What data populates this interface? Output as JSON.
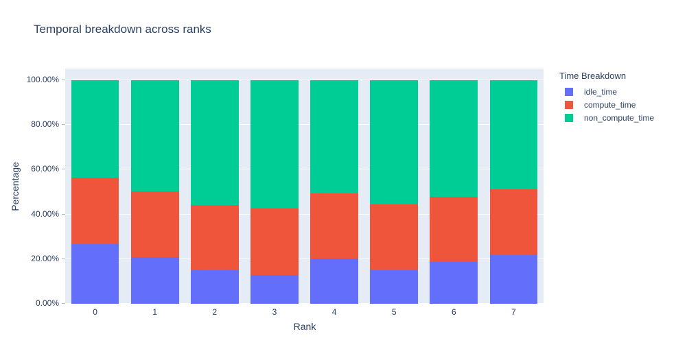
{
  "title": "Temporal breakdown across ranks",
  "colors": {
    "background": "#ffffff",
    "plot_background": "#e5ecf6",
    "grid": "#ffffff",
    "text": "#2a3f5f",
    "idle_time": "#636efa",
    "compute_time": "#ef553b",
    "non_compute_time": "#00cc96"
  },
  "chart_data": {
    "type": "bar",
    "stacked": true,
    "orientation": "vertical",
    "title": "Temporal breakdown across ranks",
    "xlabel": "Rank",
    "ylabel": "Percentage",
    "categories": [
      "0",
      "1",
      "2",
      "3",
      "4",
      "5",
      "6",
      "7"
    ],
    "series": [
      {
        "name": "idle_time",
        "color": "#636efa",
        "values": [
          26.8,
          20.8,
          15.0,
          13.0,
          20.3,
          15.1,
          18.6,
          21.7
        ]
      },
      {
        "name": "compute_time",
        "color": "#ef553b",
        "values": [
          29.6,
          29.5,
          29.2,
          29.7,
          29.1,
          29.5,
          29.3,
          29.6
        ]
      },
      {
        "name": "non_compute_time",
        "color": "#00cc96",
        "values": [
          43.6,
          49.7,
          55.8,
          57.3,
          50.6,
          55.4,
          52.1,
          48.7
        ]
      }
    ],
    "ylim": [
      0,
      105.2
    ],
    "ytick_values": [
      0,
      20,
      40,
      60,
      80,
      100
    ],
    "ytick_labels": [
      "0.00%",
      "20.00%",
      "40.00%",
      "60.00%",
      "80.00%",
      "100.00%"
    ],
    "grid": true,
    "legend_title": "Time Breakdown",
    "legend_position": "right"
  }
}
